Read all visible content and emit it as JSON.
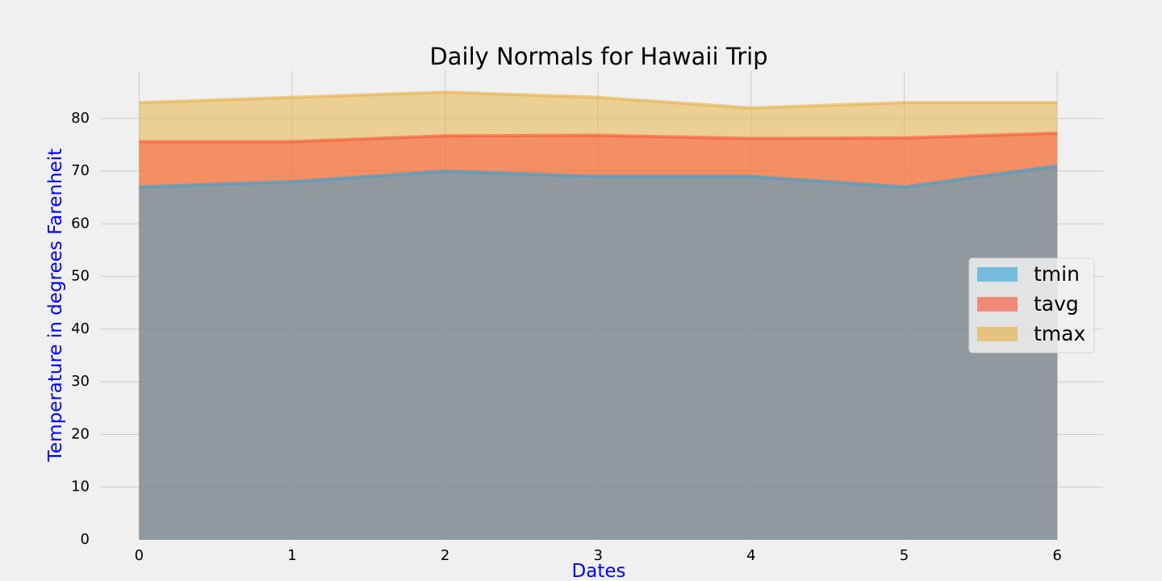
{
  "chart_data": {
    "type": "area",
    "title": "Daily Normals for Hawaii Trip",
    "xlabel": "Dates",
    "ylabel": "Temperature in degrees Farenheit",
    "x": [
      0,
      1,
      2,
      3,
      4,
      5,
      6
    ],
    "xlim": [
      -0.25,
      6.3
    ],
    "ylim": [
      0,
      89
    ],
    "yticks": [
      0,
      10,
      20,
      30,
      40,
      50,
      60,
      70,
      80
    ],
    "grid": true,
    "stacked": false,
    "legend_position": "center-right",
    "series": [
      {
        "name": "tmin",
        "values": [
          67,
          68,
          70,
          69,
          69,
          67,
          71
        ],
        "color": "#30a2da"
      },
      {
        "name": "tavg",
        "values": [
          75.6,
          75.6,
          76.7,
          76.8,
          76.2,
          76.3,
          77.2
        ],
        "color": "#fc4f30"
      },
      {
        "name": "tmax",
        "values": [
          83,
          84,
          85,
          84,
          82,
          83,
          83
        ],
        "color": "#e5ae38"
      }
    ]
  }
}
